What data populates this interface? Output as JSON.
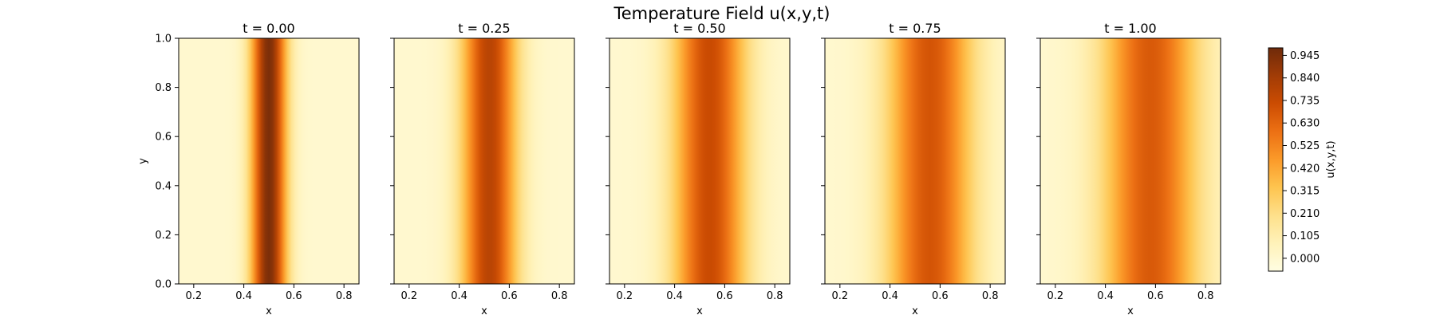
{
  "chart_data": {
    "type": "heatmap",
    "title": "Temperature Field u(x,y,t)",
    "colormap": "YlOrBr-like (pale yellow to dark brown)",
    "panels": [
      {
        "title": "t = 0.00",
        "t": 0.0,
        "peak_value": 0.95,
        "center_x": 0.5,
        "width": 0.07
      },
      {
        "title": "t = 0.25",
        "t": 0.25,
        "peak_value": 0.78,
        "center_x": 0.52,
        "width": 0.11
      },
      {
        "title": "t = 0.50",
        "t": 0.5,
        "peak_value": 0.73,
        "center_x": 0.54,
        "width": 0.145
      },
      {
        "title": "t = 0.75",
        "t": 0.75,
        "peak_value": 0.69,
        "center_x": 0.56,
        "width": 0.17
      },
      {
        "title": "t = 1.00",
        "t": 1.0,
        "peak_value": 0.67,
        "center_x": 0.58,
        "width": 0.19
      }
    ],
    "xlabel": "x",
    "ylabel": "y",
    "xlim": [
      0.14,
      0.86
    ],
    "ylim": [
      0.0,
      1.0
    ],
    "x_ticks": [
      "0.2",
      "0.4",
      "0.6",
      "0.8"
    ],
    "y_ticks": [
      "0.0",
      "0.2",
      "0.4",
      "0.6",
      "0.8",
      "1.0"
    ],
    "colorbar": {
      "label": "u(x,y,t)",
      "range": [
        -0.06,
        0.98
      ],
      "ticks": [
        "0.000",
        "0.105",
        "0.210",
        "0.315",
        "0.420",
        "0.525",
        "0.630",
        "0.735",
        "0.840",
        "0.945"
      ]
    },
    "colors": [
      "#fffde2",
      "#fff2b9",
      "#fee08b",
      "#fec44f",
      "#fb9a29",
      "#ec7014",
      "#cc4c02",
      "#a13c06",
      "#6f2a0a"
    ],
    "grid": false
  }
}
